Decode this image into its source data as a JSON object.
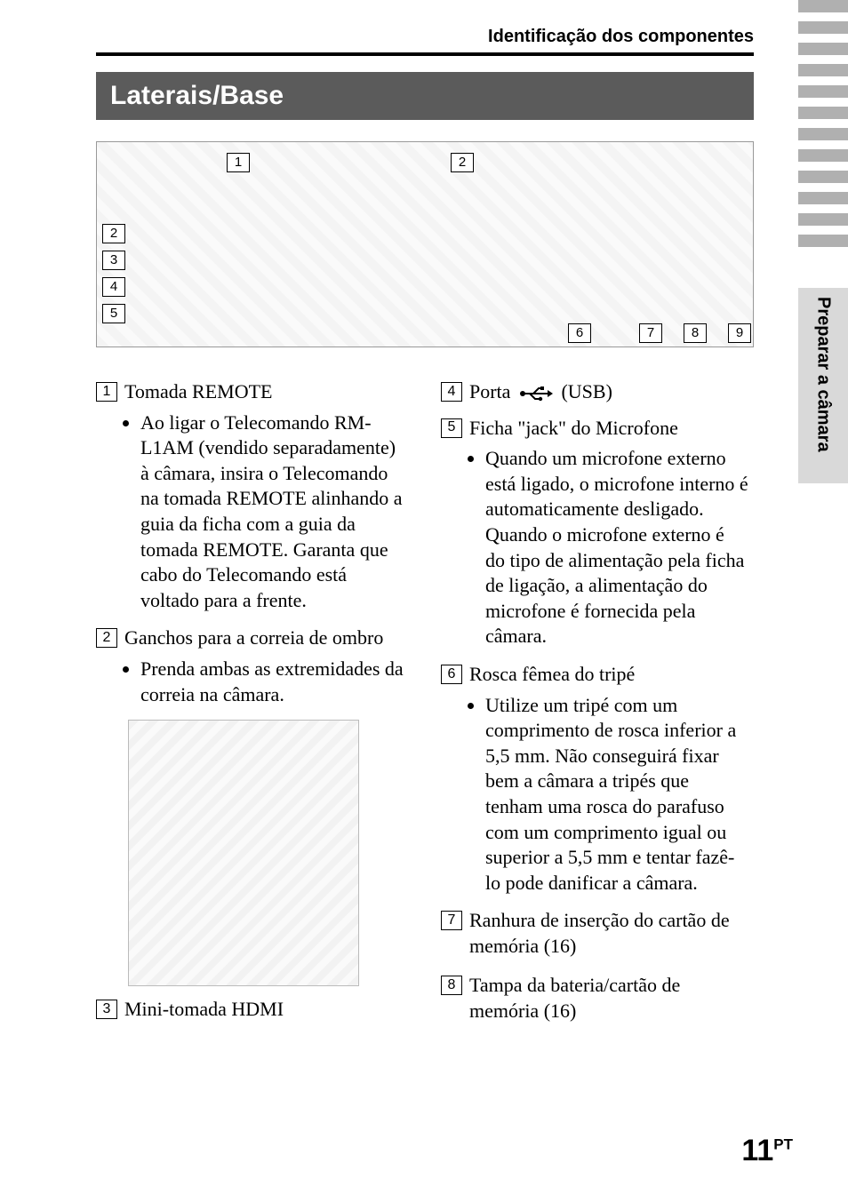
{
  "header": {
    "breadcrumb": "Identificação dos componentes",
    "section_title": "Laterais/Base",
    "vertical_tab": "Preparar a câmara"
  },
  "side_stripes": {
    "colors": [
      "#b0b0b0",
      "#b0b0b0",
      "#b0b0b0",
      "#b0b0b0",
      "#b0b0b0",
      "#b0b0b0",
      "#b0b0b0",
      "#b0b0b0",
      "#b0b0b0",
      "#b0b0b0",
      "#b0b0b0",
      "#b0b0b0"
    ],
    "height": 14,
    "gap": 10
  },
  "diagram_callouts": {
    "c1": "1",
    "c2_left": "2",
    "c3": "3",
    "c4": "4",
    "c5": "5",
    "c2_mid": "2",
    "c6": "6",
    "c7": "7",
    "c8": "8",
    "c9": "9"
  },
  "entries": {
    "e1": {
      "num": "1",
      "label": "Tomada REMOTE",
      "bullets": [
        "Ao ligar o Telecomando RM-L1AM (vendido separadamente) à câmara, insira o Telecomando na tomada REMOTE alinhando a guia da ficha com a guia da tomada REMOTE. Garanta que cabo do Telecomando está voltado para a frente."
      ]
    },
    "e2": {
      "num": "2",
      "label": "Ganchos para a correia de ombro",
      "bullets": [
        "Prenda ambas as extremidades da correia na câmara."
      ]
    },
    "e3": {
      "num": "3",
      "label": "Mini-tomada HDMI"
    },
    "e4": {
      "num": "4",
      "label_pre": "Porta ",
      "label_post": " (USB)"
    },
    "e5": {
      "num": "5",
      "label": "Ficha \"jack\" do Microfone",
      "bullets": [
        "Quando um microfone externo está ligado, o microfone interno é automaticamente desligado. Quando o microfone externo é do tipo de alimentação pela ficha de ligação, a alimentação do microfone é fornecida pela câmara."
      ]
    },
    "e6": {
      "num": "6",
      "label": "Rosca fêmea do tripé",
      "bullets": [
        "Utilize um tripé com um comprimento de rosca inferior a 5,5 mm. Não conseguirá fixar bem a câmara a tripés que tenham uma rosca do parafuso com um comprimento igual ou superior a 5,5 mm e tentar fazê-lo pode danificar a câmara."
      ]
    },
    "e7": {
      "num": "7",
      "label": "Ranhura de inserção do cartão de memória (16)"
    },
    "e8": {
      "num": "8",
      "label": "Tampa da bateria/cartão de memória (16)"
    }
  },
  "page_number": {
    "num": "11",
    "suffix": "PT"
  },
  "colors": {
    "section_bg": "#5b5b5b",
    "section_fg": "#ffffff",
    "tab_bg": "#d9d9d9",
    "rule": "#000000"
  },
  "fonts": {
    "body_family": "Times New Roman",
    "heading_family": "Arial",
    "body_size_pt": 16,
    "heading_size_pt": 22
  }
}
